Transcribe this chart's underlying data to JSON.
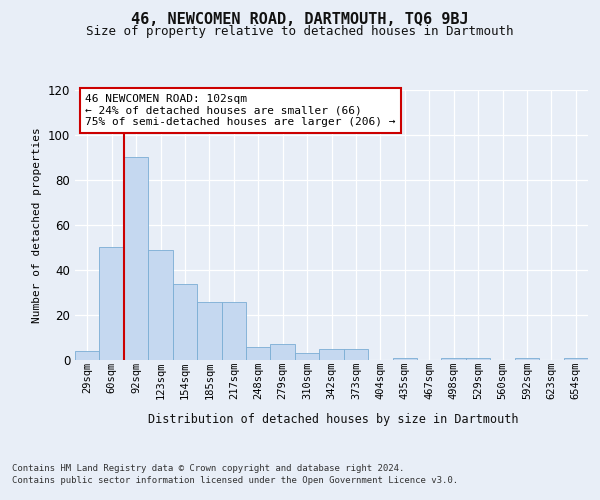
{
  "title": "46, NEWCOMEN ROAD, DARTMOUTH, TQ6 9BJ",
  "subtitle": "Size of property relative to detached houses in Dartmouth",
  "xlabel": "Distribution of detached houses by size in Dartmouth",
  "ylabel": "Number of detached properties",
  "categories": [
    "29sqm",
    "60sqm",
    "92sqm",
    "123sqm",
    "154sqm",
    "185sqm",
    "217sqm",
    "248sqm",
    "279sqm",
    "310sqm",
    "342sqm",
    "373sqm",
    "404sqm",
    "435sqm",
    "467sqm",
    "498sqm",
    "529sqm",
    "560sqm",
    "592sqm",
    "623sqm",
    "654sqm"
  ],
  "values": [
    4,
    50,
    90,
    49,
    34,
    26,
    26,
    6,
    7,
    3,
    5,
    5,
    0,
    1,
    0,
    1,
    1,
    0,
    1,
    0,
    1
  ],
  "bar_color": "#c5d8f0",
  "bar_edge_color": "#7aadd4",
  "red_line_x": 1.5,
  "annotation_text": "46 NEWCOMEN ROAD: 102sqm\n← 24% of detached houses are smaller (66)\n75% of semi-detached houses are larger (206) →",
  "annotation_box_facecolor": "#ffffff",
  "annotation_box_edgecolor": "#cc0000",
  "ylim": [
    0,
    120
  ],
  "yticks": [
    0,
    20,
    40,
    60,
    80,
    100,
    120
  ],
  "footer_line1": "Contains HM Land Registry data © Crown copyright and database right 2024.",
  "footer_line2": "Contains public sector information licensed under the Open Government Licence v3.0.",
  "fig_facecolor": "#e8eef7",
  "ax_facecolor": "#e8eef7"
}
